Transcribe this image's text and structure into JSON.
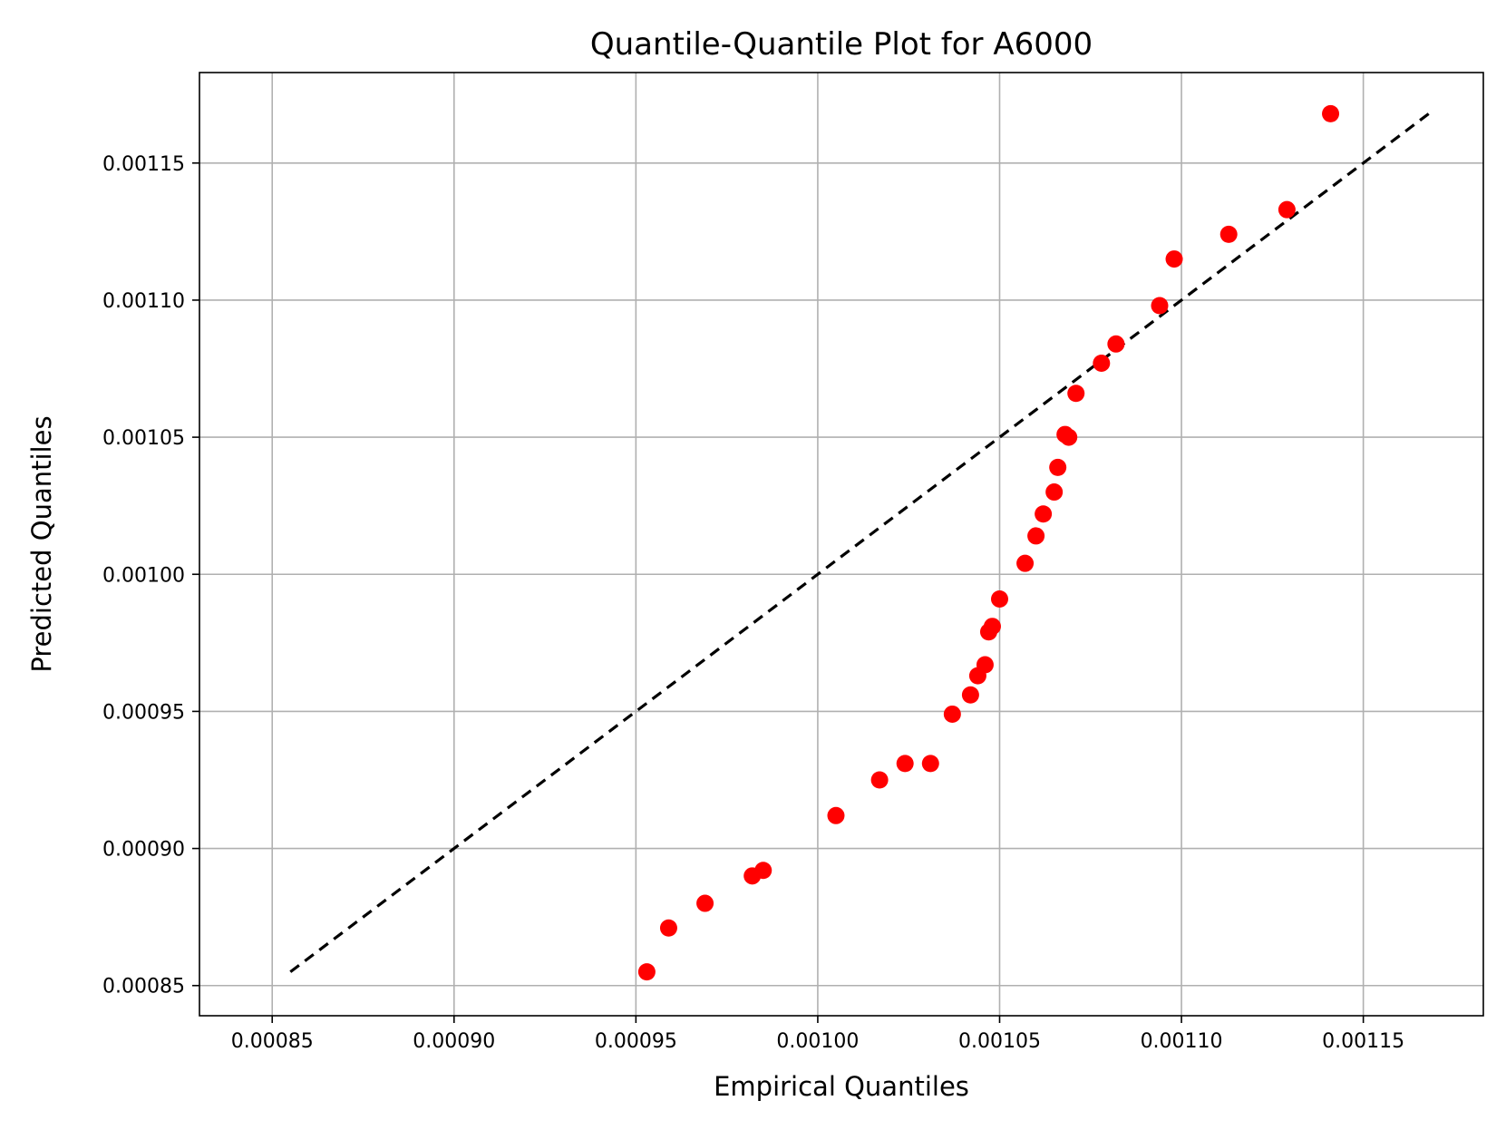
{
  "chart_data": {
    "type": "scatter",
    "title": "Quantile-Quantile Plot for A6000",
    "xlabel": "Empirical Quantiles",
    "ylabel": "Predicted Quantiles",
    "xlim": [
      0.00083,
      0.001183
    ],
    "ylim": [
      0.000839,
      0.001183
    ],
    "xticks": [
      0.00085,
      0.0009,
      0.00095,
      0.001,
      0.00105,
      0.0011,
      0.00115
    ],
    "xtick_labels": [
      "0.00085",
      "0.00090",
      "0.00095",
      "0.00100",
      "0.00105",
      "0.00110",
      "0.00115"
    ],
    "yticks": [
      0.00085,
      0.0009,
      0.00095,
      0.001,
      0.00105,
      0.0011,
      0.00115
    ],
    "ytick_labels": [
      "0.00085",
      "0.00090",
      "0.00095",
      "0.00100",
      "0.00105",
      "0.00110",
      "0.00115"
    ],
    "grid": true,
    "reference_line": {
      "x": [
        0.000855,
        0.001168
      ],
      "y": [
        0.000855,
        0.001168
      ],
      "style": "dashed",
      "color": "#000000"
    },
    "marker_color": "#ff0000",
    "points": [
      {
        "x": 0.000953,
        "y": 0.000855
      },
      {
        "x": 0.000959,
        "y": 0.000871
      },
      {
        "x": 0.000969,
        "y": 0.00088
      },
      {
        "x": 0.000982,
        "y": 0.00089
      },
      {
        "x": 0.000985,
        "y": 0.000892
      },
      {
        "x": 0.001005,
        "y": 0.000912
      },
      {
        "x": 0.001017,
        "y": 0.000925
      },
      {
        "x": 0.001024,
        "y": 0.000931
      },
      {
        "x": 0.001031,
        "y": 0.000931
      },
      {
        "x": 0.001037,
        "y": 0.000949
      },
      {
        "x": 0.001042,
        "y": 0.000956
      },
      {
        "x": 0.001044,
        "y": 0.000963
      },
      {
        "x": 0.001046,
        "y": 0.000967
      },
      {
        "x": 0.001047,
        "y": 0.000979
      },
      {
        "x": 0.001048,
        "y": 0.000981
      },
      {
        "x": 0.00105,
        "y": 0.000991
      },
      {
        "x": 0.001057,
        "y": 0.001004
      },
      {
        "x": 0.00106,
        "y": 0.001014
      },
      {
        "x": 0.001062,
        "y": 0.001022
      },
      {
        "x": 0.001065,
        "y": 0.00103
      },
      {
        "x": 0.001066,
        "y": 0.001039
      },
      {
        "x": 0.001068,
        "y": 0.001051
      },
      {
        "x": 0.001069,
        "y": 0.00105
      },
      {
        "x": 0.001071,
        "y": 0.001066
      },
      {
        "x": 0.001078,
        "y": 0.001077
      },
      {
        "x": 0.001082,
        "y": 0.001084
      },
      {
        "x": 0.001094,
        "y": 0.001098
      },
      {
        "x": 0.001098,
        "y": 0.001115
      },
      {
        "x": 0.001113,
        "y": 0.001124
      },
      {
        "x": 0.001129,
        "y": 0.001133
      },
      {
        "x": 0.001141,
        "y": 0.001168
      }
    ]
  }
}
